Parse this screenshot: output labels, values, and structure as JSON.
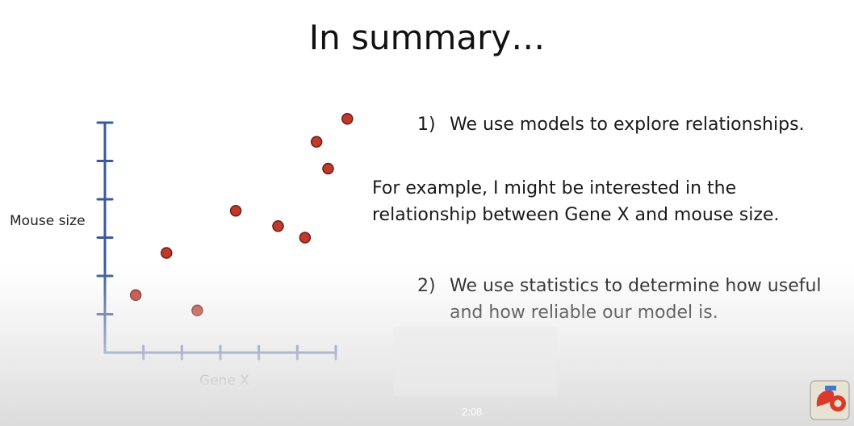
{
  "slide": {
    "title": "In summary…",
    "point1_num": "1)",
    "point1_text": "We use models to explore relationships.",
    "example_line1": "For example, I might be interested in the",
    "example_line2": "relationship between Gene X and mouse size.",
    "point2_num": "2)",
    "point2_line1": "We use statistics to determine how useful",
    "point2_line2": "and how reliable our model is."
  },
  "video": {
    "timestamp": "2:08"
  },
  "chart_data": {
    "type": "scatter",
    "title": "",
    "xlabel": "Gene X",
    "ylabel": "Mouse size",
    "xlim": [
      0,
      6
    ],
    "ylim": [
      0,
      6
    ],
    "x_ticks": 6,
    "y_ticks": 6,
    "grid": false,
    "point_color": "#c0392b",
    "axis_color": "#3b5a9a",
    "points": [
      {
        "x": 0.8,
        "y": 1.5
      },
      {
        "x": 1.6,
        "y": 2.6
      },
      {
        "x": 2.4,
        "y": 1.1
      },
      {
        "x": 3.4,
        "y": 3.7
      },
      {
        "x": 4.5,
        "y": 3.3
      },
      {
        "x": 5.2,
        "y": 3.0
      },
      {
        "x": 5.5,
        "y": 5.5
      },
      {
        "x": 5.8,
        "y": 4.8
      },
      {
        "x": 6.3,
        "y": 6.1
      }
    ]
  }
}
